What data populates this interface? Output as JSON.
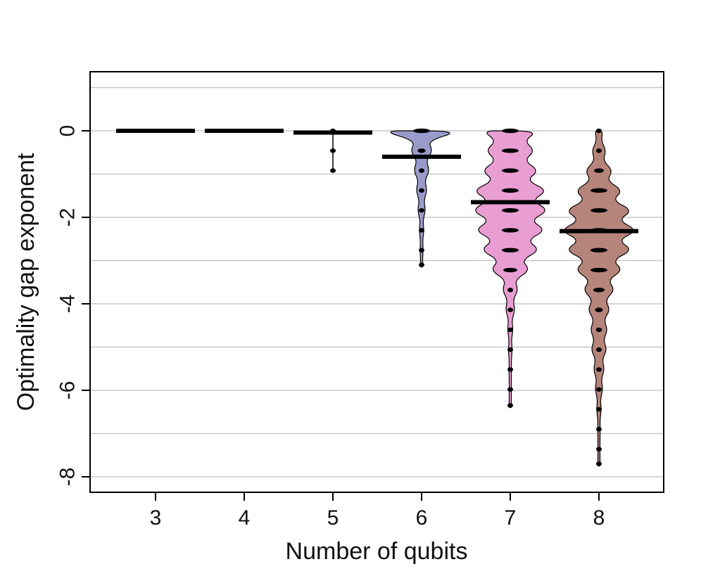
{
  "chart_data": {
    "type": "violin",
    "title": "",
    "xlabel": "Number of qubits",
    "ylabel": "Optimality gap exponent",
    "ylim": [
      -8.3,
      1.4
    ],
    "yticks": [
      0,
      -2,
      -4,
      -6,
      -8
    ],
    "ytick_labels": [
      "0",
      "-2",
      "-4",
      "-6",
      "-8"
    ],
    "grid_lines": [
      1,
      0,
      -1,
      -2,
      -3,
      -4,
      -5,
      -6,
      -7,
      -8
    ],
    "grid": true,
    "categories": [
      "3",
      "4",
      "5",
      "6",
      "7",
      "8"
    ],
    "series": [
      {
        "category": "3",
        "mean": 0.0,
        "min": 0.0,
        "color": "#000000",
        "density": []
      },
      {
        "category": "4",
        "mean": 0.0,
        "min": 0.0,
        "color": "#000000",
        "density": []
      },
      {
        "category": "5",
        "mean": -0.04,
        "min": -0.92,
        "color": "#000000",
        "density": [
          [
            0,
            0.02
          ],
          [
            -0.46,
            0.012
          ],
          [
            -0.92,
            0.008
          ]
        ]
      },
      {
        "category": "6",
        "mean": -0.6,
        "min": -3.15,
        "color": "#9b9bcb",
        "density": [
          [
            0,
            1.0
          ],
          [
            -0.46,
            0.28
          ],
          [
            -0.92,
            0.2
          ],
          [
            -1.38,
            0.14
          ],
          [
            -1.84,
            0.1
          ],
          [
            -2.3,
            0.06
          ],
          [
            -2.76,
            0.04
          ],
          [
            -3.1,
            0.01
          ]
        ]
      },
      {
        "category": "7",
        "mean": -1.65,
        "min": -6.4,
        "color": "#e99ed3",
        "density": [
          [
            0,
            0.7
          ],
          [
            -0.46,
            0.62
          ],
          [
            -0.92,
            0.72
          ],
          [
            -1.38,
            0.95
          ],
          [
            -1.84,
            0.98
          ],
          [
            -2.3,
            0.9
          ],
          [
            -2.76,
            0.75
          ],
          [
            -3.22,
            0.5
          ],
          [
            -3.68,
            0.2
          ],
          [
            -4.14,
            0.12
          ],
          [
            -4.6,
            0.07
          ],
          [
            -5.06,
            0.05
          ],
          [
            -5.52,
            0.03
          ],
          [
            -5.98,
            0.02
          ],
          [
            -6.35,
            0.01
          ]
        ]
      },
      {
        "category": "8",
        "mean": -2.32,
        "min": -7.75,
        "color": "#b5857b",
        "density": [
          [
            0,
            0.1
          ],
          [
            -0.46,
            0.18
          ],
          [
            -0.92,
            0.35
          ],
          [
            -1.38,
            0.6
          ],
          [
            -1.84,
            0.85
          ],
          [
            -2.3,
            0.98
          ],
          [
            -2.76,
            0.85
          ],
          [
            -3.22,
            0.6
          ],
          [
            -3.68,
            0.4
          ],
          [
            -4.14,
            0.28
          ],
          [
            -4.6,
            0.22
          ],
          [
            -5.06,
            0.2
          ],
          [
            -5.52,
            0.14
          ],
          [
            -5.98,
            0.1
          ],
          [
            -6.44,
            0.06
          ],
          [
            -6.9,
            0.03
          ],
          [
            -7.36,
            0.02
          ],
          [
            -7.7,
            0.01
          ]
        ]
      }
    ]
  }
}
